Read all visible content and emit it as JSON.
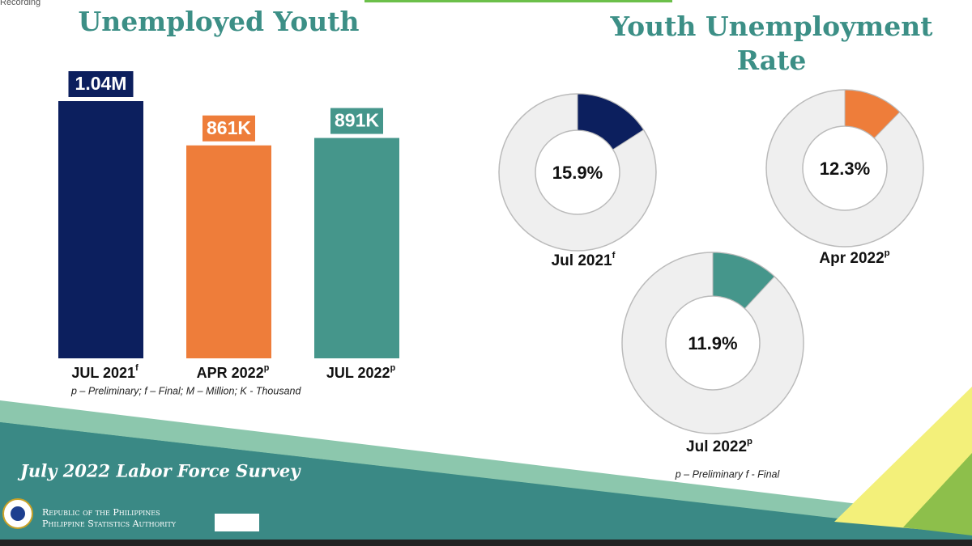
{
  "recording": "Recording",
  "chart_data": [
    {
      "type": "bar",
      "title": "Unemployed Youth",
      "categories": [
        "JUL 2021",
        "APR 2022",
        "JUL 2022"
      ],
      "category_marks": [
        "f",
        "p",
        "p"
      ],
      "values": [
        1040000,
        861000,
        891000
      ],
      "value_labels": [
        "1.04M",
        "861K",
        "891K"
      ],
      "colors": [
        "#0c1f5e",
        "#ee7d3a",
        "#45968b"
      ],
      "note": "p – Preliminary; f – Final; M – Million; K - Thousand"
    },
    {
      "type": "donut",
      "title": "Youth Unemployment Rate",
      "categories": [
        "Jul 2021",
        "Apr 2022",
        "Jul 2022"
      ],
      "category_marks": [
        "f",
        "p",
        "p"
      ],
      "values": [
        15.9,
        12.3,
        11.9
      ],
      "value_labels": [
        "15.9%",
        "12.3%",
        "11.9%"
      ],
      "colors": [
        "#0c1f5e",
        "#ee7d3a",
        "#45968b"
      ],
      "note": "p – Preliminary f - Final"
    }
  ],
  "footer": {
    "survey": "July 2022 Labor Force Survey",
    "org_line1": "Republic of the Philippines",
    "org_line2": "Philippine Statistics Authority"
  }
}
